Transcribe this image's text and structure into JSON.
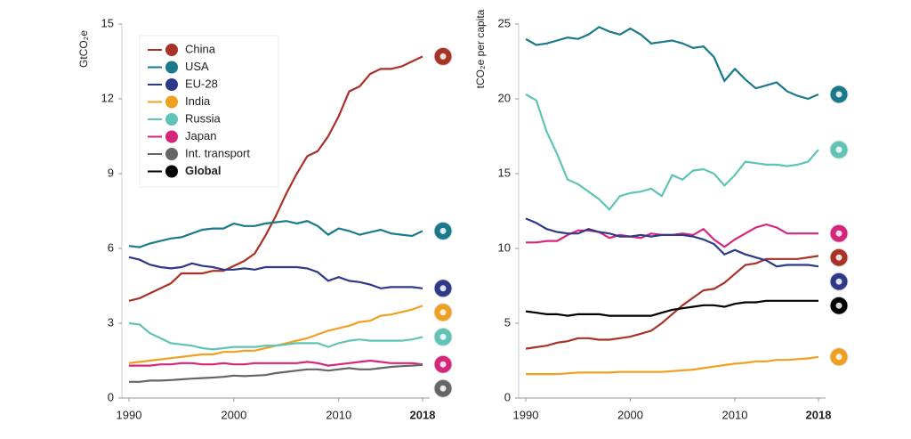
{
  "chart_data": [
    {
      "type": "line",
      "y_label": "GtCO₂e",
      "x": [
        1990,
        1991,
        1992,
        1993,
        1994,
        1995,
        1996,
        1997,
        1998,
        1999,
        2000,
        2001,
        2002,
        2003,
        2004,
        2005,
        2006,
        2007,
        2008,
        2009,
        2010,
        2011,
        2012,
        2013,
        2014,
        2015,
        2016,
        2017,
        2018
      ],
      "xlim": [
        1990,
        2018
      ],
      "xticks": [
        1990,
        2000,
        2010,
        2018
      ],
      "ylim": [
        0,
        15
      ],
      "yticks": [
        0,
        3,
        6,
        9,
        12,
        15
      ],
      "legend": "upper left",
      "series": [
        {
          "name": "China",
          "color": "#a93226",
          "values": [
            3.9,
            4.0,
            4.2,
            4.4,
            4.6,
            5.0,
            5.0,
            5.0,
            5.1,
            5.1,
            5.3,
            5.5,
            5.8,
            6.5,
            7.3,
            8.2,
            9.0,
            9.7,
            9.9,
            10.5,
            11.3,
            12.3,
            12.5,
            13.0,
            13.2,
            13.2,
            13.3,
            13.5,
            13.7
          ]
        },
        {
          "name": "USA",
          "color": "#1a7a8c",
          "values": [
            6.1,
            6.05,
            6.2,
            6.3,
            6.4,
            6.45,
            6.6,
            6.75,
            6.8,
            6.8,
            7.0,
            6.9,
            6.9,
            7.0,
            7.05,
            7.1,
            7.0,
            7.1,
            6.9,
            6.55,
            6.8,
            6.7,
            6.55,
            6.65,
            6.75,
            6.6,
            6.55,
            6.5,
            6.7
          ]
        },
        {
          "name": "EU-28",
          "color": "#2e3a87",
          "values": [
            5.65,
            5.55,
            5.35,
            5.25,
            5.2,
            5.25,
            5.4,
            5.3,
            5.25,
            5.15,
            5.15,
            5.2,
            5.15,
            5.25,
            5.25,
            5.25,
            5.25,
            5.2,
            5.05,
            4.7,
            4.85,
            4.7,
            4.65,
            4.55,
            4.4,
            4.45,
            4.45,
            4.45,
            4.4
          ]
        },
        {
          "name": "India",
          "color": "#f0a020",
          "values": [
            1.4,
            1.45,
            1.5,
            1.55,
            1.6,
            1.65,
            1.7,
            1.75,
            1.75,
            1.85,
            1.85,
            1.9,
            1.9,
            2.0,
            2.1,
            2.2,
            2.3,
            2.4,
            2.55,
            2.7,
            2.8,
            2.9,
            3.05,
            3.1,
            3.3,
            3.35,
            3.45,
            3.55,
            3.7
          ]
        },
        {
          "name": "Russia",
          "color": "#5fc4b6",
          "values": [
            3.0,
            2.95,
            2.6,
            2.4,
            2.2,
            2.15,
            2.1,
            2.0,
            1.95,
            2.0,
            2.05,
            2.05,
            2.05,
            2.1,
            2.1,
            2.15,
            2.2,
            2.2,
            2.2,
            2.05,
            2.2,
            2.3,
            2.35,
            2.3,
            2.3,
            2.3,
            2.3,
            2.35,
            2.45
          ]
        },
        {
          "name": "Japan",
          "color": "#d6267c",
          "values": [
            1.3,
            1.3,
            1.3,
            1.35,
            1.35,
            1.4,
            1.4,
            1.35,
            1.35,
            1.4,
            1.35,
            1.35,
            1.4,
            1.4,
            1.4,
            1.4,
            1.4,
            1.45,
            1.4,
            1.3,
            1.35,
            1.4,
            1.45,
            1.5,
            1.45,
            1.4,
            1.4,
            1.4,
            1.35
          ]
        },
        {
          "name": "Int. transport",
          "color": "#666666",
          "values": [
            0.65,
            0.65,
            0.7,
            0.7,
            0.72,
            0.75,
            0.78,
            0.8,
            0.82,
            0.85,
            0.9,
            0.88,
            0.9,
            0.92,
            1.0,
            1.05,
            1.1,
            1.15,
            1.15,
            1.1,
            1.15,
            1.2,
            1.15,
            1.15,
            1.2,
            1.25,
            1.28,
            1.3,
            1.33
          ]
        }
      ]
    },
    {
      "type": "line",
      "y_label": "tCO₂e per capita",
      "x": [
        1990,
        1991,
        1992,
        1993,
        1994,
        1995,
        1996,
        1997,
        1998,
        1999,
        2000,
        2001,
        2002,
        2003,
        2004,
        2005,
        2006,
        2007,
        2008,
        2009,
        2010,
        2011,
        2012,
        2013,
        2014,
        2015,
        2016,
        2017,
        2018
      ],
      "xlim": [
        1990,
        2018
      ],
      "xticks": [
        1990,
        2000,
        2010,
        2018
      ],
      "ylim": [
        0,
        25
      ],
      "yticks": [
        0,
        5,
        10,
        15,
        20,
        25
      ],
      "series": [
        {
          "name": "USA",
          "color": "#1a7a8c",
          "values": [
            24.0,
            23.6,
            23.7,
            23.9,
            24.1,
            24.0,
            24.3,
            24.8,
            24.5,
            24.3,
            24.7,
            24.3,
            23.7,
            23.8,
            23.9,
            23.7,
            23.4,
            23.5,
            22.8,
            21.2,
            22.0,
            21.3,
            20.7,
            20.9,
            21.1,
            20.5,
            20.2,
            20.0,
            20.3
          ]
        },
        {
          "name": "Russia",
          "color": "#5fc4b6",
          "values": [
            20.3,
            19.9,
            17.8,
            16.3,
            14.6,
            14.3,
            13.8,
            13.3,
            12.6,
            13.5,
            13.7,
            13.8,
            14.0,
            13.5,
            14.9,
            14.6,
            15.2,
            15.3,
            15.0,
            14.2,
            14.9,
            15.8,
            15.7,
            15.6,
            15.6,
            15.5,
            15.6,
            15.8,
            16.6
          ]
        },
        {
          "name": "Japan",
          "color": "#d6267c",
          "values": [
            10.4,
            10.4,
            10.5,
            10.5,
            10.9,
            11.2,
            11.2,
            11.1,
            10.7,
            10.9,
            10.8,
            10.7,
            11.0,
            10.9,
            10.9,
            11.0,
            10.9,
            11.3,
            10.6,
            10.1,
            10.6,
            11.0,
            11.4,
            11.6,
            11.4,
            11.0,
            11.0,
            11.0,
            11.0
          ]
        },
        {
          "name": "China",
          "color": "#a93226",
          "values": [
            3.3,
            3.4,
            3.5,
            3.7,
            3.8,
            4.0,
            4.0,
            3.9,
            3.9,
            4.0,
            4.1,
            4.3,
            4.5,
            5.0,
            5.6,
            6.2,
            6.7,
            7.2,
            7.3,
            7.7,
            8.3,
            8.9,
            9.0,
            9.3,
            9.3,
            9.3,
            9.3,
            9.4,
            9.5
          ]
        },
        {
          "name": "EU-28",
          "color": "#2e3a87",
          "values": [
            12.0,
            11.7,
            11.3,
            11.1,
            11.0,
            11.0,
            11.3,
            11.1,
            11.0,
            10.8,
            10.8,
            10.9,
            10.8,
            10.9,
            10.9,
            10.9,
            10.8,
            10.6,
            10.3,
            9.6,
            9.9,
            9.6,
            9.4,
            9.2,
            8.8,
            8.9,
            8.9,
            8.9,
            8.8
          ]
        },
        {
          "name": "Global",
          "color": "#000000",
          "values": [
            5.8,
            5.7,
            5.6,
            5.6,
            5.5,
            5.6,
            5.6,
            5.6,
            5.5,
            5.5,
            5.5,
            5.5,
            5.5,
            5.7,
            5.9,
            6.0,
            6.1,
            6.2,
            6.2,
            6.1,
            6.3,
            6.4,
            6.4,
            6.5,
            6.5,
            6.5,
            6.5,
            6.5,
            6.5
          ]
        },
        {
          "name": "India",
          "color": "#f0a020",
          "values": [
            1.6,
            1.6,
            1.6,
            1.6,
            1.65,
            1.7,
            1.7,
            1.7,
            1.7,
            1.75,
            1.75,
            1.75,
            1.75,
            1.75,
            1.8,
            1.85,
            1.9,
            2.0,
            2.1,
            2.2,
            2.3,
            2.35,
            2.45,
            2.45,
            2.55,
            2.55,
            2.6,
            2.65,
            2.75
          ]
        }
      ]
    }
  ]
}
